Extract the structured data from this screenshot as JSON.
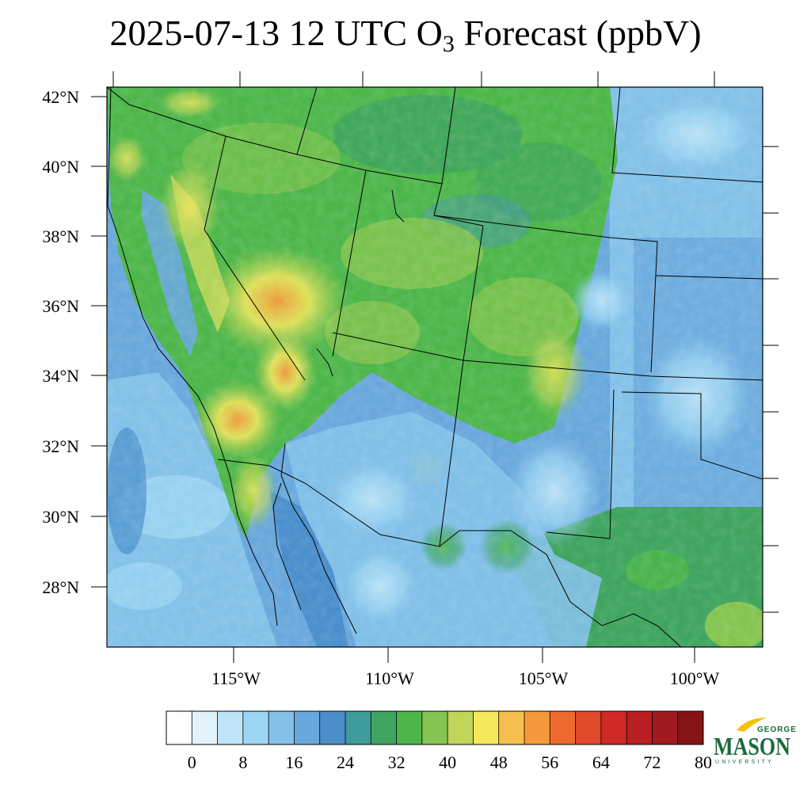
{
  "title": {
    "main": "2025-07-13 12 UTC O",
    "subscript": "3",
    "suffix": " Forecast (ppbV)"
  },
  "map": {
    "variable": "O3",
    "units": "ppbV",
    "valid_time": "2025-07-13 12 UTC",
    "lat_labels": [
      "42°N",
      "40°N",
      "38°N",
      "36°N",
      "34°N",
      "32°N",
      "30°N",
      "28°N"
    ],
    "lon_labels": [
      "115°W",
      "110°W",
      "105°W",
      "100°W"
    ],
    "lat_range": [
      26.3,
      42.3
    ],
    "lon_range": [
      -119.3,
      -97.7
    ]
  },
  "colorbar": {
    "tick_labels": [
      "0",
      "8",
      "16",
      "24",
      "32",
      "40",
      "48",
      "56",
      "64",
      "72",
      "80"
    ],
    "colors": [
      "#ffffff",
      "#e2f2fb",
      "#bfe4f7",
      "#9dd6f3",
      "#83c1e8",
      "#69a8dc",
      "#4a8fcc",
      "#3e9c9a",
      "#3fa45f",
      "#4db64a",
      "#84c450",
      "#bfd65a",
      "#f5e85c",
      "#f7c04e",
      "#f59a3c",
      "#ef6b2d",
      "#e04a2a",
      "#cf2a26",
      "#b81e22",
      "#9e1a1e",
      "#861316"
    ]
  },
  "logo": {
    "line1": "GEORGE",
    "line2": "MASON",
    "line3": "UNIVERSITY",
    "color": "#1a6b3a",
    "accent": "#f2c300"
  }
}
